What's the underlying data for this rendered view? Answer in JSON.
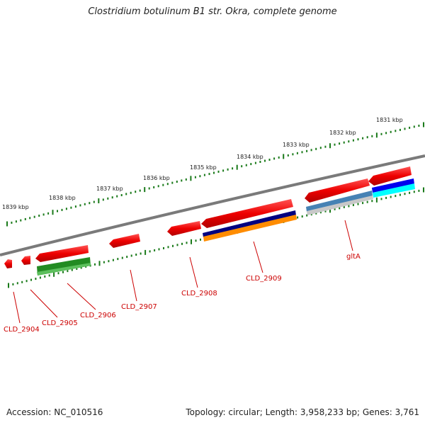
{
  "title": "Clostridium botulinum B1 str. Okra, complete genome",
  "footer": {
    "accession": "Accession: NC_010516",
    "summary": "Topology: circular; Length: 3,958,233 bp; Genes: 3,761"
  },
  "kbp_labels": [
    "1831 kbp",
    "1832 kbp",
    "1833 kbp",
    "1834 kbp",
    "1835 kbp",
    "1836 kbp",
    "1837 kbp",
    "1838 kbp",
    "1839 kbp"
  ],
  "gene_labels": [
    "CLD_2904",
    "CLD_2905",
    "CLD_2906",
    "CLD_2907",
    "CLD_2908",
    "CLD_2909",
    "gltA"
  ],
  "colors": {
    "backbone": "#808080",
    "gene": "#ee0000",
    "tick": "#1a7a1a",
    "label": "#cc0000",
    "green_feature": "#228b22",
    "navy_feature": "#000080",
    "orange_feature": "#ff8c00",
    "steel_feature": "#4682b4",
    "blue_feature": "#0000ee",
    "cyan_feature": "#00ffff"
  }
}
